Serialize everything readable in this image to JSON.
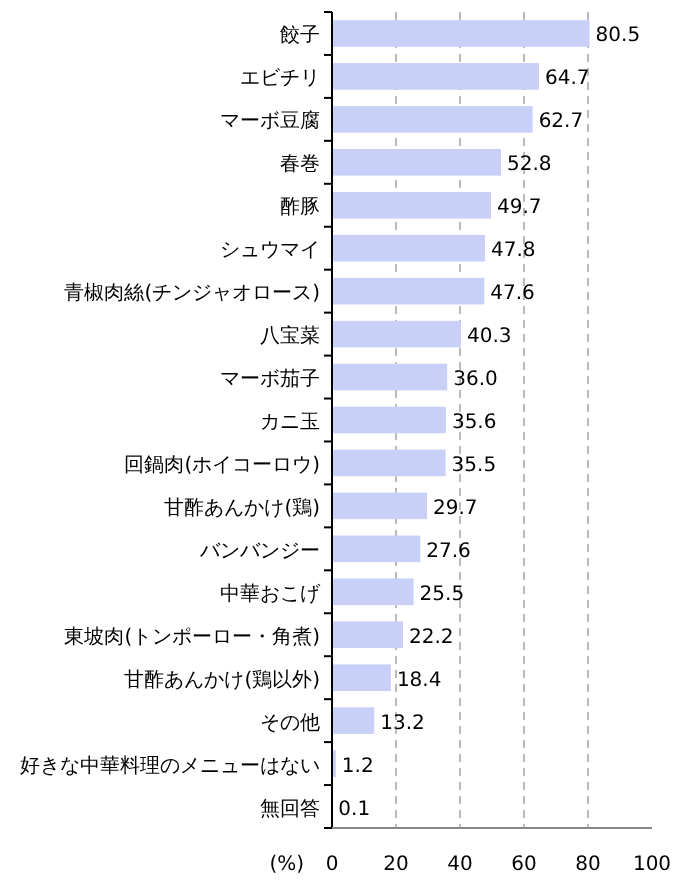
{
  "chart_data": {
    "type": "bar",
    "orientation": "horizontal",
    "xlabel": "(%)",
    "categories": [
      "餃子",
      "エビチリ",
      "マーボ豆腐",
      "春巻",
      "酢豚",
      "シュウマイ",
      "青椒肉絲(チンジャオロース)",
      "八宝菜",
      "マーボ茄子",
      "カニ玉",
      "回鍋肉(ホイコーロウ)",
      "甘酢あんかけ(鶏)",
      "バンバンジー",
      "中華おこげ",
      "東坡肉(トンポーロー・角煮)",
      "甘酢あんかけ(鶏以外)",
      "その他",
      "好きな中華料理のメニューはない",
      "無回答"
    ],
    "values": [
      80.5,
      64.7,
      62.7,
      52.8,
      49.7,
      47.8,
      47.6,
      40.3,
      36.0,
      35.6,
      35.5,
      29.7,
      27.6,
      25.5,
      22.2,
      18.4,
      13.2,
      1.2,
      0.1
    ],
    "color": "#c8d0f8",
    "xlim": [
      0,
      100
    ],
    "xticks": [
      0,
      20,
      40,
      60,
      80,
      100
    ],
    "grid": "x",
    "value_labels": [
      "80.5",
      "64.7",
      "62.7",
      "52.8",
      "49.7",
      "47.8",
      "47.6",
      "40.3",
      "36.0",
      "35.6",
      "35.5",
      "29.7",
      "27.6",
      "25.5",
      "22.2",
      "18.4",
      "13.2",
      "1.2",
      "0.1"
    ]
  }
}
